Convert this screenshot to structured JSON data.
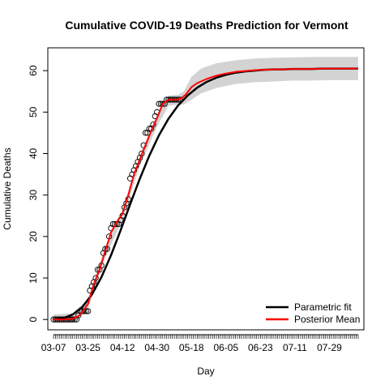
{
  "chart_data": {
    "type": "line",
    "title": "Cumulative COVID-19 Deaths Prediction for Vermont",
    "xlabel": "Day",
    "ylabel": "Cumulative Deaths",
    "x_start_date": "2020-03-07",
    "x_end_date": "2020-08-13",
    "xlim": [
      "2020-03-04",
      "2020-08-16"
    ],
    "ylim": [
      -2.5,
      65.5
    ],
    "x_ticks": [
      "03-07",
      "03-25",
      "04-12",
      "04-30",
      "05-18",
      "06-05",
      "06-23",
      "07-11",
      "07-29"
    ],
    "y_ticks": [
      0,
      10,
      20,
      30,
      40,
      50,
      60
    ],
    "legend": {
      "position": "bottom-right",
      "entries": [
        {
          "label": "Parametric fit",
          "color": "#000000"
        },
        {
          "label": "Posterior Mean",
          "color": "#ff0000"
        }
      ]
    },
    "colors": {
      "band": "#d3d3d3",
      "observed_points": "#000000",
      "parametric": "#000000",
      "posterior": "#ff0000"
    },
    "observed": {
      "dates": [
        "2020-03-07",
        "2020-03-08",
        "2020-03-09",
        "2020-03-10",
        "2020-03-11",
        "2020-03-12",
        "2020-03-13",
        "2020-03-14",
        "2020-03-15",
        "2020-03-16",
        "2020-03-17",
        "2020-03-18",
        "2020-03-19",
        "2020-03-20",
        "2020-03-21",
        "2020-03-22",
        "2020-03-23",
        "2020-03-24",
        "2020-03-25",
        "2020-03-26",
        "2020-03-27",
        "2020-03-28",
        "2020-03-29",
        "2020-03-30",
        "2020-03-31",
        "2020-04-01",
        "2020-04-02",
        "2020-04-03",
        "2020-04-04",
        "2020-04-05",
        "2020-04-06",
        "2020-04-07",
        "2020-04-08",
        "2020-04-09",
        "2020-04-10",
        "2020-04-11",
        "2020-04-12",
        "2020-04-13",
        "2020-04-14",
        "2020-04-15",
        "2020-04-16",
        "2020-04-17",
        "2020-04-18",
        "2020-04-19",
        "2020-04-20",
        "2020-04-21",
        "2020-04-22",
        "2020-04-23",
        "2020-04-24",
        "2020-04-25",
        "2020-04-26",
        "2020-04-27",
        "2020-04-28",
        "2020-04-29",
        "2020-04-30",
        "2020-05-01",
        "2020-05-02",
        "2020-05-03",
        "2020-05-04",
        "2020-05-05",
        "2020-05-06",
        "2020-05-07",
        "2020-05-08",
        "2020-05-09",
        "2020-05-10",
        "2020-05-11",
        "2020-05-12"
      ],
      "values": [
        0,
        0,
        0,
        0,
        0,
        0,
        0,
        0,
        0,
        0,
        0,
        0,
        0,
        1,
        2,
        2,
        2,
        2,
        2,
        7,
        8,
        9,
        10,
        12,
        12,
        13,
        16,
        17,
        17,
        20,
        22,
        23,
        23,
        23,
        23,
        24,
        25,
        27,
        28,
        29,
        34,
        35,
        36,
        37,
        38,
        39,
        40,
        42,
        45,
        45,
        46,
        46,
        47,
        49,
        50,
        52,
        52,
        52,
        52,
        53,
        53,
        53,
        53,
        53,
        53,
        53,
        53
      ]
    },
    "parametric_fit": {
      "dates": [
        "2020-03-07",
        "2020-03-12",
        "2020-03-17",
        "2020-03-22",
        "2020-03-27",
        "2020-04-01",
        "2020-04-06",
        "2020-04-11",
        "2020-04-16",
        "2020-04-21",
        "2020-04-26",
        "2020-05-01",
        "2020-05-06",
        "2020-05-11",
        "2020-05-16",
        "2020-05-21",
        "2020-05-26",
        "2020-05-31",
        "2020-06-05",
        "2020-06-10",
        "2020-06-15",
        "2020-06-20",
        "2020-06-25",
        "2020-06-30",
        "2020-07-05",
        "2020-07-10",
        "2020-07-15",
        "2020-07-20",
        "2020-07-25",
        "2020-07-30",
        "2020-08-04",
        "2020-08-09",
        "2020-08-13"
      ],
      "values": [
        0.0,
        0.3,
        1.2,
        3.0,
        6.0,
        10.2,
        15.5,
        21.5,
        27.8,
        33.9,
        39.5,
        44.4,
        48.4,
        51.6,
        54.0,
        55.9,
        57.3,
        58.3,
        59.0,
        59.5,
        59.8,
        60.0,
        60.2,
        60.3,
        60.3,
        60.4,
        60.4,
        60.4,
        60.5,
        60.5,
        60.5,
        60.5,
        60.5
      ]
    },
    "posterior_mean": {
      "dates": [
        "2020-03-07",
        "2020-03-12",
        "2020-03-17",
        "2020-03-20",
        "2020-03-22",
        "2020-03-25",
        "2020-03-28",
        "2020-03-31",
        "2020-04-03",
        "2020-04-06",
        "2020-04-09",
        "2020-04-12",
        "2020-04-15",
        "2020-04-18",
        "2020-04-21",
        "2020-04-24",
        "2020-04-27",
        "2020-04-30",
        "2020-05-03",
        "2020-05-06",
        "2020-05-09",
        "2020-05-12",
        "2020-05-15",
        "2020-05-18",
        "2020-05-21",
        "2020-05-26",
        "2020-05-31",
        "2020-06-05",
        "2020-06-10",
        "2020-06-15",
        "2020-06-20",
        "2020-06-25",
        "2020-06-30",
        "2020-07-05",
        "2020-07-10",
        "2020-07-15",
        "2020-07-20",
        "2020-07-25",
        "2020-07-30",
        "2020-08-04",
        "2020-08-09",
        "2020-08-13"
      ],
      "values": [
        0.0,
        0.0,
        0.2,
        0.8,
        1.8,
        3.8,
        8.5,
        12.0,
        16.5,
        21.0,
        23.5,
        25.5,
        30.0,
        35.0,
        38.5,
        42.0,
        45.5,
        48.5,
        52.0,
        53.0,
        53.0,
        53.1,
        54.2,
        56.0,
        57.0,
        58.0,
        58.8,
        59.3,
        59.7,
        59.9,
        60.1,
        60.2,
        60.3,
        60.3,
        60.4,
        60.4,
        60.4,
        60.5,
        60.5,
        60.5,
        60.5,
        60.5
      ]
    },
    "band_upper": {
      "dates": [
        "2020-03-07",
        "2020-03-17",
        "2020-03-25",
        "2020-04-03",
        "2020-04-12",
        "2020-04-21",
        "2020-04-30",
        "2020-05-06",
        "2020-05-11",
        "2020-05-14",
        "2020-05-18",
        "2020-05-23",
        "2020-05-31",
        "2020-06-10",
        "2020-06-20",
        "2020-06-30",
        "2020-07-10",
        "2020-07-20",
        "2020-07-30",
        "2020-08-13"
      ],
      "values": [
        1.2,
        1.5,
        5.0,
        17.5,
        26.5,
        39.5,
        49.5,
        54.0,
        54.2,
        55.0,
        58.5,
        60.5,
        61.8,
        62.5,
        62.9,
        63.1,
        63.2,
        63.3,
        63.3,
        63.3
      ]
    },
    "band_lower": {
      "dates": [
        "2020-03-07",
        "2020-03-17",
        "2020-03-25",
        "2020-04-03",
        "2020-04-12",
        "2020-04-21",
        "2020-04-30",
        "2020-05-06",
        "2020-05-11",
        "2020-05-14",
        "2020-05-18",
        "2020-05-23",
        "2020-05-31",
        "2020-06-10",
        "2020-06-20",
        "2020-06-30",
        "2020-07-10",
        "2020-07-20",
        "2020-07-30",
        "2020-08-13"
      ],
      "values": [
        -0.8,
        -0.8,
        2.5,
        15.0,
        24.0,
        37.0,
        46.5,
        51.5,
        51.8,
        51.8,
        53.0,
        54.5,
        55.8,
        56.8,
        57.2,
        57.4,
        57.6,
        57.6,
        57.7,
        57.7
      ]
    },
    "grid": false
  }
}
